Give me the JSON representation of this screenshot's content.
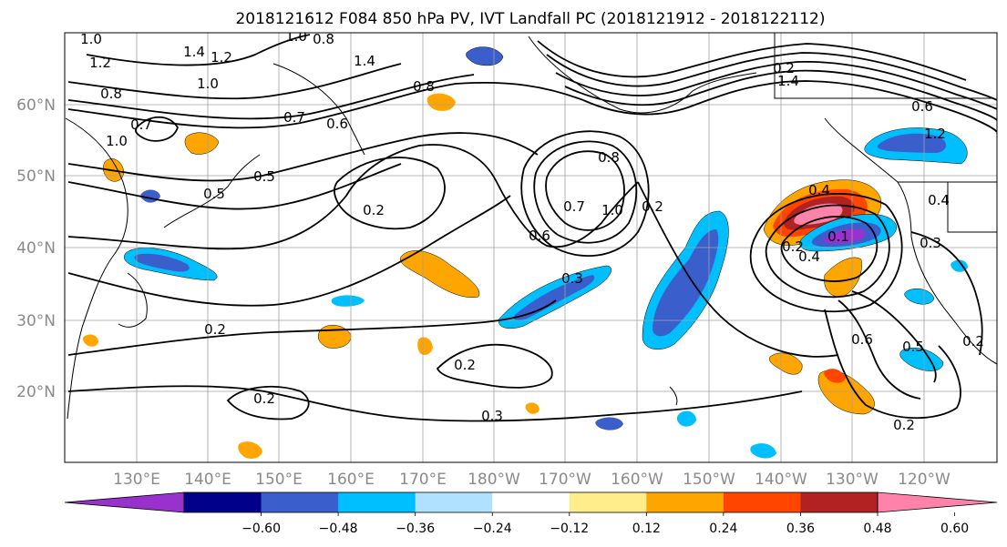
{
  "title": "2018121612 F084 850 hPa PV, IVT Landfall PC (2018121912 - 2018122112)",
  "map": {
    "lat_labels": [
      "60°N",
      "50°N",
      "40°N",
      "30°N",
      "20°N"
    ],
    "lon_labels": [
      "130°E",
      "140°E",
      "150°E",
      "160°E",
      "170°E",
      "180°W",
      "170°W",
      "160°W",
      "150°W",
      "140°W",
      "130°W",
      "120°W"
    ],
    "contour_labels": [
      "1.0",
      "1.2",
      "1.4",
      "1.2",
      "1.0",
      "0.8",
      "1.0",
      "0.8",
      "1.4",
      "0.8",
      "0.7",
      "1.0",
      "0.7",
      "0.6",
      "0.5",
      "0.2",
      "0.5",
      "0.7",
      "0.6",
      "1.0",
      "0.8",
      "0.2",
      "0.3",
      "0.2",
      "0.3",
      "0.2",
      "0.2",
      "0.2",
      "1.4",
      "0.6",
      "1.2",
      "0.4",
      "0.4",
      "0.3",
      "0.4",
      "0.1",
      "0.6",
      "0.5",
      "0.2",
      "0.2",
      "0.2"
    ]
  },
  "colorbar": {
    "tick_labels": [
      "−0.60",
      "−0.48",
      "−0.36",
      "−0.24",
      "−0.12",
      "0.12",
      "0.24",
      "0.36",
      "0.48",
      "0.60"
    ],
    "colors": [
      "#9932cc",
      "#00008b",
      "#3a5fcd",
      "#00bfff",
      "#b0e2ff",
      "#ffffff",
      "#ffec8b",
      "#ffa500",
      "#ff4500",
      "#b22222",
      "#ff82ab"
    ]
  }
}
